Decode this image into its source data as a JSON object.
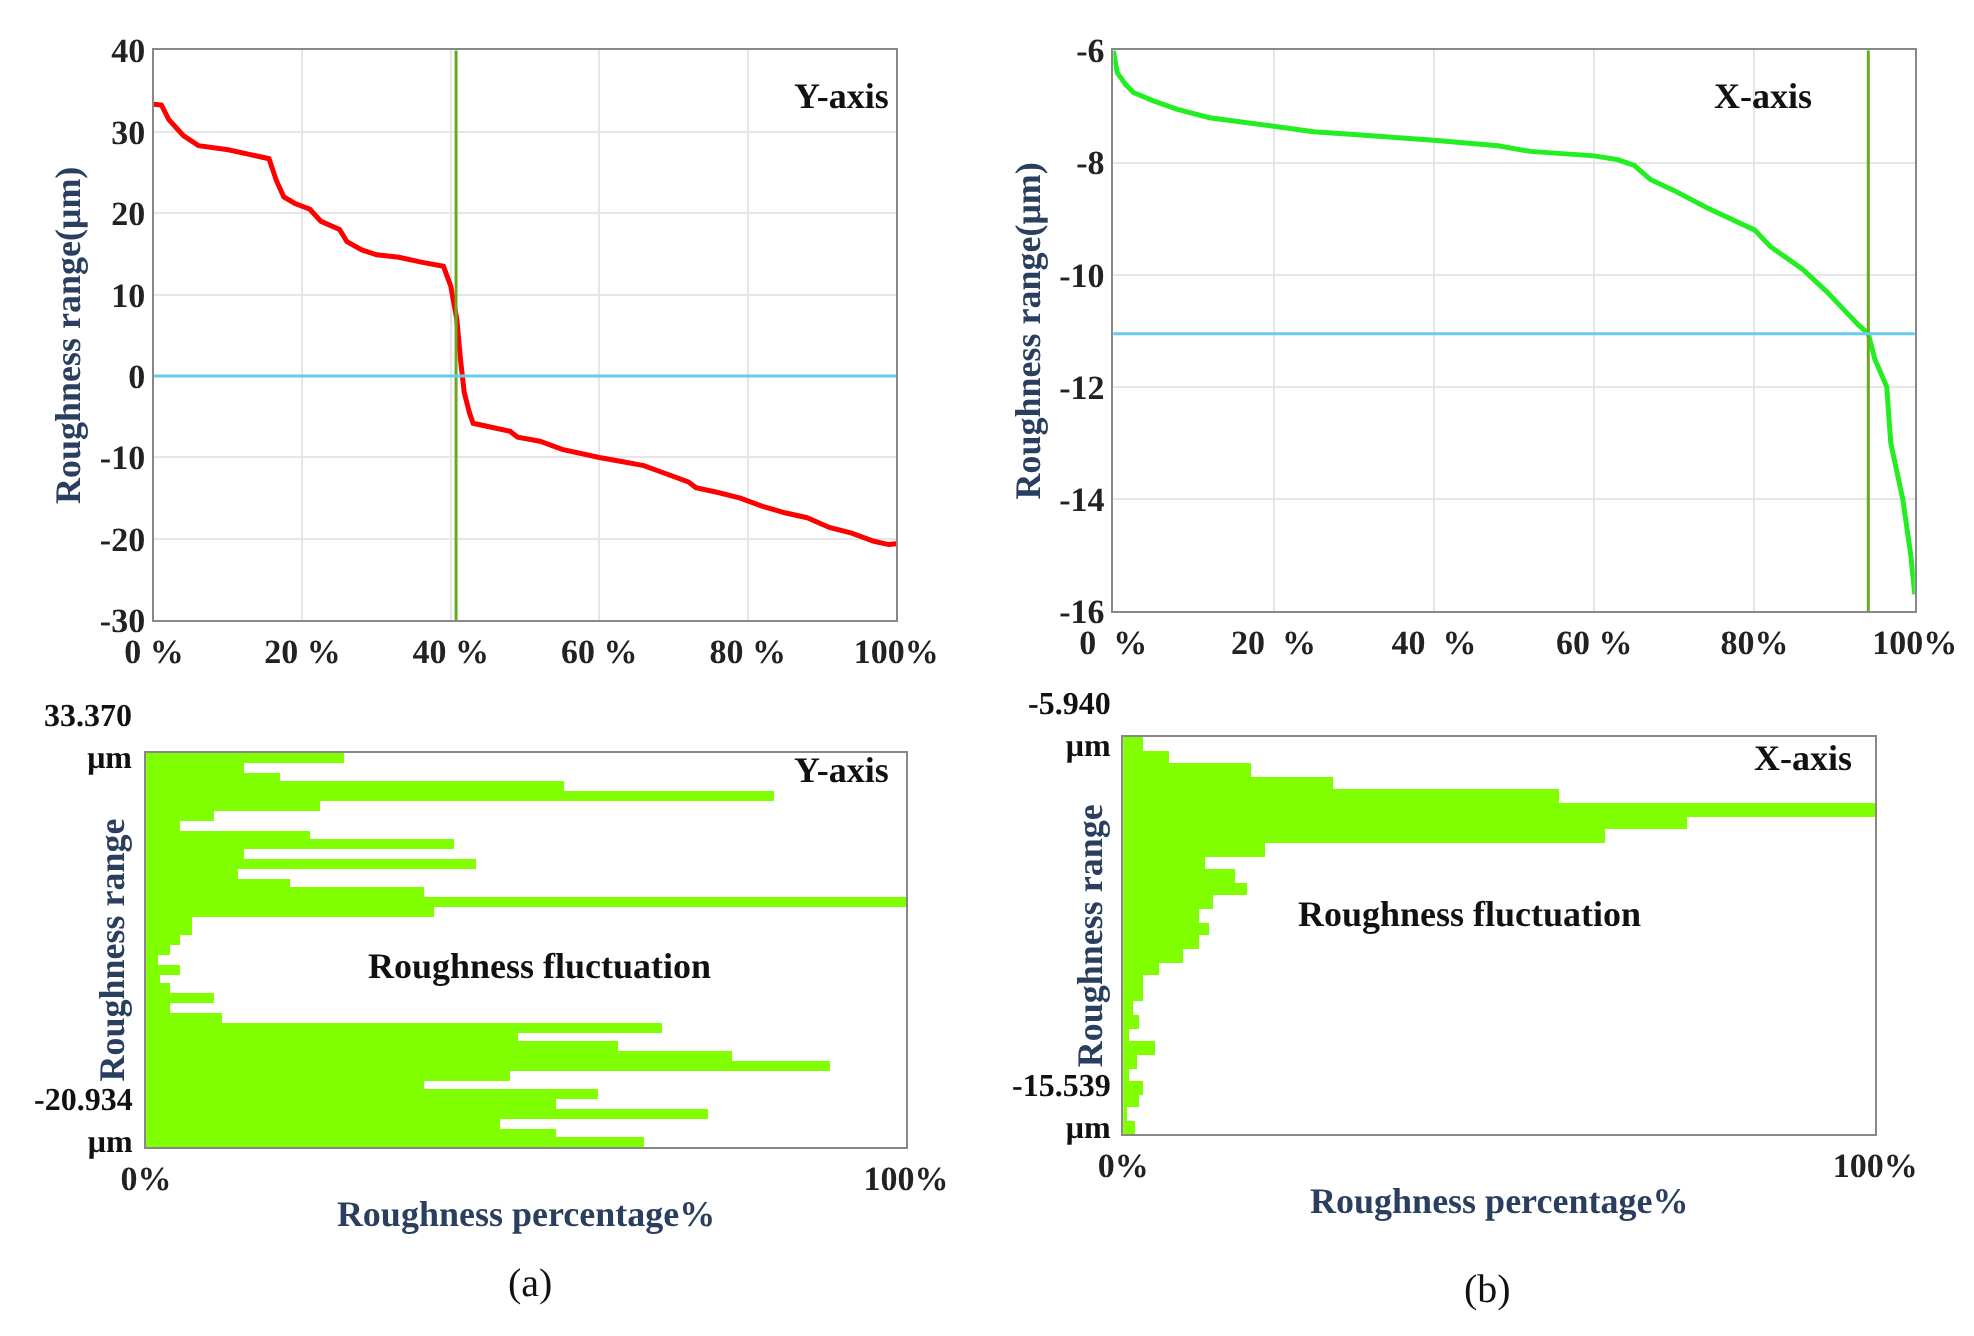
{
  "chart_data": [
    {
      "type": "line",
      "ylabel": "Roughness range(μm)",
      "annotations": [
        "Y-axis"
      ],
      "grid": true,
      "xlim": [
        0,
        100
      ],
      "ylim": [
        -30,
        40
      ],
      "xticks": [
        {
          "value": 0,
          "label": "0 %"
        },
        {
          "value": 20,
          "label": "20 %"
        },
        {
          "value": 40,
          "label": "40 %"
        },
        {
          "value": 60,
          "label": "60 %"
        },
        {
          "value": 80,
          "label": "80 %"
        },
        {
          "value": 100,
          "label": "100%"
        }
      ],
      "yticks": [
        -30,
        -20,
        -10,
        0,
        10,
        20,
        30,
        40
      ],
      "ref_lines": [
        {
          "axis": "x",
          "value": 40.7,
          "color": "#66aa22"
        },
        {
          "axis": "y",
          "value": 0,
          "color": "#66ccee"
        }
      ],
      "x": [
        0,
        1,
        2,
        3,
        4,
        6,
        10,
        13,
        15.5,
        16.5,
        17.5,
        19,
        21,
        22.5,
        25,
        26,
        28,
        30,
        33,
        36,
        39,
        40,
        40.8,
        41.3,
        41.8,
        42.5,
        43,
        45,
        48,
        49,
        52,
        55,
        60,
        63,
        66,
        69,
        72,
        73,
        76,
        79,
        82,
        85,
        88,
        91,
        94,
        97,
        99,
        100
      ],
      "series": [
        {
          "color": "#ff0000",
          "values": [
            33.4,
            33.3,
            31.5,
            30.5,
            29.5,
            28.3,
            27.8,
            27.2,
            26.7,
            24,
            22,
            21.2,
            20.5,
            19,
            18,
            16.5,
            15.5,
            14.9,
            14.6,
            14,
            13.5,
            11,
            7,
            2,
            -2,
            -4.5,
            -5.8,
            -6.2,
            -6.8,
            -7.5,
            -8,
            -9,
            -10,
            -10.5,
            -11,
            -12,
            -13,
            -13.7,
            -14.3,
            -15,
            -16,
            -16.8,
            -17.4,
            -18.6,
            -19.3,
            -20.3,
            -20.7,
            -20.6
          ]
        }
      ]
    },
    {
      "type": "line",
      "ylabel": "Roughness range(μm)",
      "annotations": [
        "X-axis"
      ],
      "grid": true,
      "xlim": [
        0,
        100
      ],
      "ylim": [
        -16,
        -6
      ],
      "xticks": [
        {
          "value": 0,
          "label": "0  %"
        },
        {
          "value": 20,
          "label": "20  %"
        },
        {
          "value": 40,
          "label": "40  %"
        },
        {
          "value": 60,
          "label": "60 %"
        },
        {
          "value": 80,
          "label": "80%"
        },
        {
          "value": 100,
          "label": "100%"
        }
      ],
      "yticks": [
        -16,
        -14,
        -12,
        -10,
        -8,
        -6
      ],
      "ref_lines": [
        {
          "axis": "x",
          "value": 94.2,
          "color": "#66aa22"
        },
        {
          "axis": "y",
          "value": -11.05,
          "color": "#66ccee"
        }
      ],
      "x": [
        0,
        0.5,
        1.5,
        2.5,
        5,
        8,
        12,
        20,
        25,
        30,
        40,
        48,
        52,
        60,
        63,
        65,
        67,
        70,
        74,
        77,
        80,
        82,
        86,
        89,
        91,
        93,
        94.2,
        95,
        96.5,
        97,
        98.5,
        99.5,
        100
      ],
      "series": [
        {
          "color": "#22ee22",
          "values": [
            -6.0,
            -6.4,
            -6.6,
            -6.75,
            -6.9,
            -7.05,
            -7.2,
            -7.35,
            -7.45,
            -7.5,
            -7.6,
            -7.7,
            -7.8,
            -7.88,
            -7.95,
            -8.05,
            -8.3,
            -8.5,
            -8.8,
            -9.0,
            -9.2,
            -9.5,
            -9.9,
            -10.3,
            -10.6,
            -10.9,
            -11.05,
            -11.5,
            -12,
            -13,
            -14,
            -15,
            -15.7
          ]
        }
      ]
    },
    {
      "type": "bar",
      "orientation": "horizontal",
      "xlabel": "Roughness percentage%",
      "ylabel": "Roughness range",
      "tick_labels": "x",
      "color": "#7fff00",
      "annotations": [
        "33.370 μm",
        "-20.934 μm",
        "Y-axis",
        "Roughness fluctuation",
        "(a)"
      ],
      "xlim": [
        0,
        100
      ],
      "xticks": [
        {
          "value": 0,
          "label": "0%"
        },
        {
          "value": 100,
          "label": "100%"
        }
      ],
      "categories": [
        null,
        null,
        null,
        null,
        null,
        null,
        null,
        null,
        null,
        null,
        null,
        null,
        null,
        null,
        null,
        null,
        null,
        null,
        null,
        null,
        null,
        null,
        null,
        null,
        null,
        null,
        null,
        null,
        null,
        null,
        null,
        null,
        null,
        null,
        null,
        null,
        null,
        null,
        null,
        null,
        null
      ],
      "values": [
        26,
        13,
        17.5,
        55,
        82.5,
        23,
        9,
        4.5,
        21.5,
        40.5,
        13,
        43.5,
        12,
        19,
        36.5,
        100,
        38,
        6,
        6,
        4.4,
        3.2,
        1.5,
        4.4,
        1.8,
        3.2,
        9,
        3.2,
        10,
        68,
        49,
        62,
        77,
        90,
        48,
        36.5,
        59.5,
        54,
        74,
        46.5,
        54,
        65.5
      ]
    },
    {
      "type": "bar",
      "orientation": "horizontal",
      "xlabel": "Roughness percentage%",
      "ylabel": "Roughness range",
      "tick_labels": "x",
      "color": "#7fff00",
      "annotations": [
        "-5.940 μm",
        "-15.539 μm",
        "X-axis",
        "Roughness fluctuation",
        "(b)"
      ],
      "xlim": [
        0,
        100
      ],
      "xticks": [
        {
          "value": 0,
          "label": "0%"
        },
        {
          "value": 100,
          "label": "100%"
        }
      ],
      "categories": [
        null,
        null,
        null,
        null,
        null,
        null,
        null,
        null,
        null,
        null,
        null,
        null,
        null,
        null,
        null,
        null,
        null,
        null,
        null,
        null,
        null,
        null,
        null,
        null,
        null,
        null,
        null,
        null,
        null,
        null
      ],
      "values": [
        2.7,
        6,
        17,
        28,
        58,
        100,
        75,
        64,
        19,
        11,
        15,
        16.5,
        12,
        10,
        11.5,
        10,
        8,
        4.9,
        2.7,
        2.7,
        1.3,
        2.2,
        0.9,
        4.2,
        1.8,
        0.9,
        2.7,
        2.2,
        0.4,
        1.5
      ]
    }
  ]
}
